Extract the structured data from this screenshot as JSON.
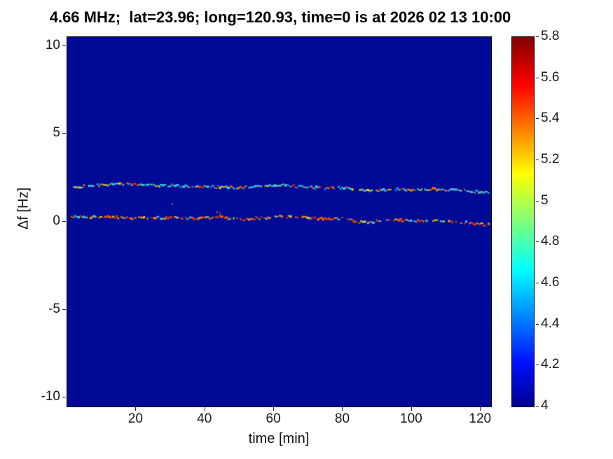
{
  "title": "4.66 MHz;  lat=23.96; long=120.93, time=0 is at 2026 02 13 10:00",
  "chart_data": {
    "type": "heatmap",
    "title": "4.66 MHz;  lat=23.96; long=120.93, time=0 is at 2026 02 13 10:00",
    "xlabel": "time [min]",
    "ylabel": "Δf [Hz]",
    "xlim": [
      0,
      123
    ],
    "ylim": [
      -10.5,
      10.5
    ],
    "xticks": [
      20,
      40,
      60,
      80,
      100,
      120
    ],
    "yticks": [
      10,
      5,
      0,
      -5,
      -10
    ],
    "background_value": 4,
    "background_color": "#000a96",
    "grid": false,
    "seed": 7,
    "colorbar": {
      "min": 4,
      "max": 5.8,
      "ticks": [
        5.8,
        5.6,
        5.4,
        5.2,
        5,
        4.8,
        4.6,
        4.4,
        4.2,
        4
      ],
      "colormap": "jet",
      "colormap_stops": [
        {
          "pos": 0.0,
          "color": "#00008f"
        },
        {
          "pos": 0.12,
          "color": "#0010ff"
        },
        {
          "pos": 0.37,
          "color": "#00ffff"
        },
        {
          "pos": 0.5,
          "color": "#7dff7a"
        },
        {
          "pos": 0.63,
          "color": "#ffff00"
        },
        {
          "pos": 0.87,
          "color": "#ff0000"
        },
        {
          "pos": 1.0,
          "color": "#800000"
        }
      ]
    },
    "series": [
      {
        "name": "upper Doppler trace (~2 Hz)",
        "points": [
          [
            0,
            1.9
          ],
          [
            6,
            2.05
          ],
          [
            12,
            2.1
          ],
          [
            16,
            2.15
          ],
          [
            20,
            2.1
          ],
          [
            26,
            2.05
          ],
          [
            32,
            2.05
          ],
          [
            38,
            2.0
          ],
          [
            44,
            1.98
          ],
          [
            50,
            1.95
          ],
          [
            55,
            2.0
          ],
          [
            60,
            2.05
          ],
          [
            63,
            2.1
          ],
          [
            67,
            2.0
          ],
          [
            71,
            1.95
          ],
          [
            76,
            1.9
          ],
          [
            80,
            1.95
          ],
          [
            84,
            1.88
          ],
          [
            87,
            1.75
          ],
          [
            91,
            1.82
          ],
          [
            96,
            1.85
          ],
          [
            101,
            1.8
          ],
          [
            106,
            1.85
          ],
          [
            111,
            1.8
          ],
          [
            116,
            1.75
          ],
          [
            120,
            1.7
          ],
          [
            123,
            1.65
          ]
        ],
        "palette": [
          "#38d0e8",
          "#48c4f0",
          "#2fd8d8",
          "#ff6a00",
          "#e83000",
          "#ffd000",
          "#38d0e8",
          "#50c8ee",
          "#ff8c00",
          "#35cfe0"
        ]
      },
      {
        "name": "lower Doppler trace (~0 Hz)",
        "points": [
          [
            0,
            0.3
          ],
          [
            6,
            0.27
          ],
          [
            12,
            0.3
          ],
          [
            18,
            0.22
          ],
          [
            24,
            0.2
          ],
          [
            30,
            0.25
          ],
          [
            36,
            0.2
          ],
          [
            42,
            0.22
          ],
          [
            44,
            0.3
          ],
          [
            47,
            0.2
          ],
          [
            51,
            0.15
          ],
          [
            56,
            0.2
          ],
          [
            60,
            0.27
          ],
          [
            63,
            0.3
          ],
          [
            66,
            0.25
          ],
          [
            68,
            0.33
          ],
          [
            71,
            0.2
          ],
          [
            76,
            0.15
          ],
          [
            80,
            0.18
          ],
          [
            84,
            0.02
          ],
          [
            88,
            -0.05
          ],
          [
            92,
            0.1
          ],
          [
            97,
            0.08
          ],
          [
            102,
            0.05
          ],
          [
            107,
            0.1
          ],
          [
            111,
            0.0
          ],
          [
            115,
            -0.05
          ],
          [
            119,
            -0.13
          ],
          [
            123,
            -0.2
          ]
        ],
        "palette": [
          "#ff6a00",
          "#e83000",
          "#ff9000",
          "#ffc800",
          "#38d0e8",
          "#ff4e00",
          "#d85500",
          "#40cce8",
          "#ff6a00"
        ]
      }
    ],
    "speckles": [
      [
        43.5,
        0.55
      ],
      [
        44.3,
        0.48
      ],
      [
        30.5,
        1.0
      ]
    ]
  }
}
